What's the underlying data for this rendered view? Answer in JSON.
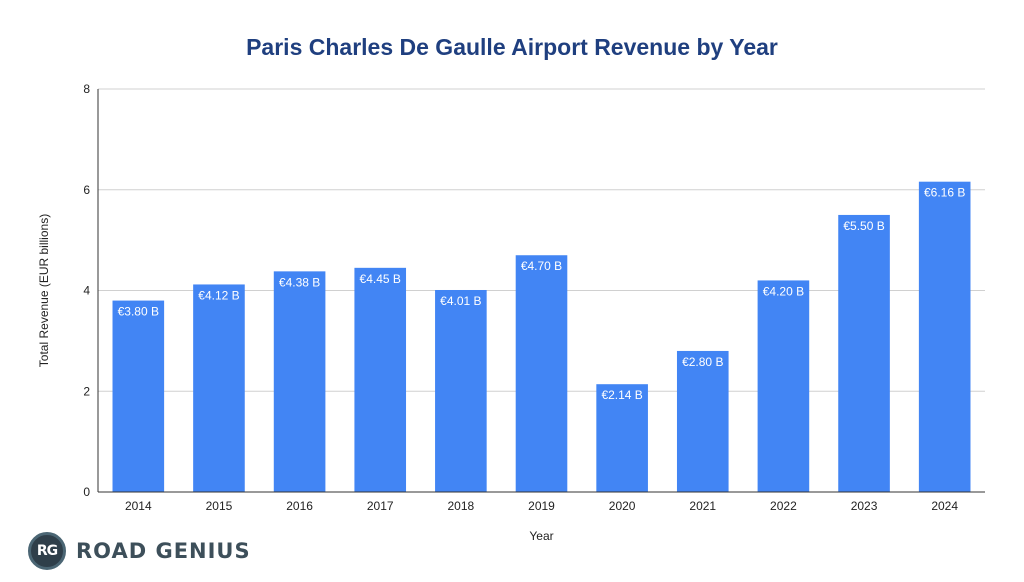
{
  "chart_data": {
    "type": "bar",
    "title": "Paris Charles De Gaulle Airport Revenue by Year",
    "xlabel": "Year",
    "ylabel": "Total Revenue (EUR billions)",
    "categories": [
      "2014",
      "2015",
      "2016",
      "2017",
      "2018",
      "2019",
      "2020",
      "2021",
      "2022",
      "2023",
      "2024"
    ],
    "values": [
      3.8,
      4.12,
      4.38,
      4.45,
      4.01,
      4.7,
      2.14,
      2.8,
      4.2,
      5.5,
      6.16
    ],
    "data_labels": [
      "€3.80 B",
      "€4.12 B",
      "€4.38 B",
      "€4.45 B",
      "€4.01 B",
      "€4.70 B",
      "€2.14 B",
      "€2.80 B",
      "€4.20 B",
      "€5.50 B",
      "€6.16 B"
    ],
    "ylim": [
      0,
      8
    ],
    "yticks": [
      "0",
      "2",
      "4",
      "6",
      "8"
    ],
    "grid": true,
    "bar_color": "#4285f4"
  },
  "brand": {
    "logo_text": "RG",
    "name": "ROAD GENIUS"
  }
}
